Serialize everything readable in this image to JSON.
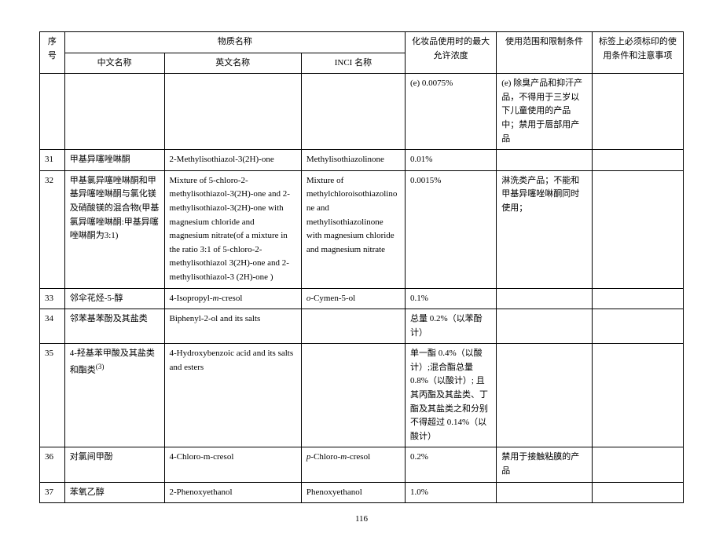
{
  "header": {
    "seq": "序号",
    "name_group": "物质名称",
    "cn": "中文名称",
    "en": "英文名称",
    "inci": "INCI 名称",
    "conc": "化妆品使用时的最大允许浓度",
    "scope": "使用范围和限制条件",
    "label": "标签上必须标印的使用条件和注意事项"
  },
  "rows": {
    "r0": {
      "conc": "(e) 0.0075%",
      "scope": "(e) 除臭产品和抑汗产品，不得用于三岁以下儿童使用的产品中；禁用于唇部用产品"
    },
    "r31": {
      "seq": "31",
      "cn": "甲基异噻唑啉酮",
      "en": "2-Methylisothiazol-3(2H)-one",
      "inci": "Methylisothiazolinone",
      "conc": "0.01%"
    },
    "r32": {
      "seq": "32",
      "cn": "甲基氯异噻唑啉酮和甲基异噻唑啉酮与氯化镁及硝酸镁的混合物(甲基氯异噻唑啉酮:甲基异噻唑啉酮为3:1)",
      "en": "Mixture of 5-chloro-2-methylisothiazol-3(2H)-one and 2-methylisothiazol-3(2H)-one with magnesium chloride and magnesium nitrate(of a mixture in the ratio 3:1 of 5-chloro-2-methylisothiazol 3(2H)-one and 2-methylisothiazol-3 (2H)-one )",
      "inci": "Mixture of methylchloroisothiazolinone and methylisothiazolinone with magnesium chloride and magnesium nitrate",
      "conc": "0.0015%",
      "scope": "淋洗类产品；不能和甲基异噻唑啉酮同时使用；"
    },
    "r33": {
      "seq": "33",
      "cn": "邻伞花烃-5-醇",
      "en_pre": "4-Isopropyl-",
      "en_it": "m",
      "en_post": "-cresol",
      "inci_it": "o",
      "inci_post": "-Cymen-5-ol",
      "conc": "0.1%"
    },
    "r34": {
      "seq": "34",
      "cn": "邻苯基苯酚及其盐类",
      "en": "Biphenyl-2-ol and its salts",
      "conc": "总量 0.2%（以苯酚计）"
    },
    "r35": {
      "seq": "35",
      "cn_pre": "4-羟基苯甲酸及其盐类和酯类",
      "cn_sup": "(3)",
      "en": "4-Hydroxybenzoic acid and its salts and esters",
      "conc": "单一酯 0.4%（以酸计）;混合酯总量 0.8%（以酸计）;\n且其丙酯及其盐类、丁酯及其盐类之和分别不得超过 0.14%（以酸计）"
    },
    "r36": {
      "seq": "36",
      "cn": "对氯间甲酚",
      "en": "4-Chloro-m-cresol",
      "inci_it1": "p",
      "inci_mid": "-Chloro-",
      "inci_it2": "m",
      "inci_post": "-cresol",
      "conc": "0.2%",
      "scope": "禁用于接触粘膜的产品"
    },
    "r37": {
      "seq": "37",
      "cn": "苯氧乙醇",
      "en": "2-Phenoxyethanol",
      "inci": "Phenoxyethanol",
      "conc": "1.0%"
    }
  },
  "page_number": "116"
}
